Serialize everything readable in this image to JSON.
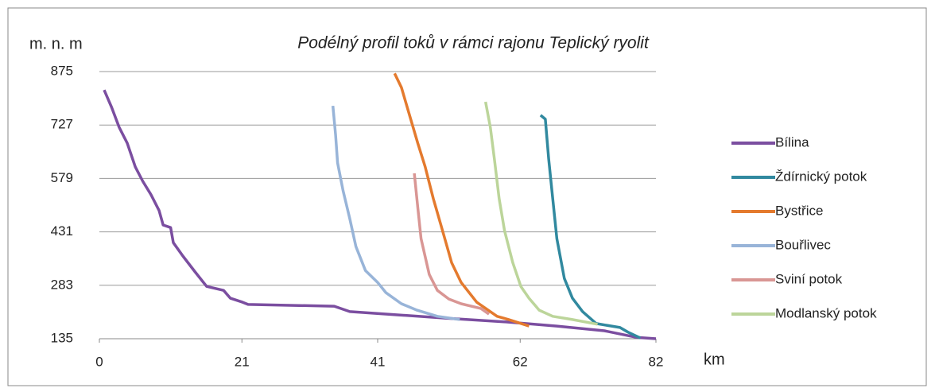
{
  "chart_data": {
    "type": "line",
    "title": "Podélný profil toků v rámci rajonu Teplický ryolit",
    "y_label": "m. n. m",
    "x_label": "km",
    "xlim": [
      0,
      82
    ],
    "xticks": [
      0,
      21,
      41,
      62,
      82
    ],
    "ylim": [
      135,
      875
    ],
    "yticks": [
      135,
      283,
      431,
      579,
      727,
      875
    ],
    "grid": true,
    "legend": "right",
    "series": [
      {
        "name": "Bílina",
        "color": "#7b4ea0",
        "x": [
          0.7,
          1.8,
          2.9,
          4.1,
          5.3,
          6.4,
          7.6,
          8.8,
          9.4,
          10.5,
          10.9,
          12.3,
          14.1,
          15.8,
          18.3,
          19.3,
          21.1,
          21.9,
          34.6,
          36.9,
          43.9,
          51,
          60.3,
          67.4,
          74.4,
          79.1,
          82
        ],
        "values": [
          824,
          776,
          721,
          677,
          611,
          571,
          534,
          490,
          450,
          443,
          401,
          364,
          320,
          280,
          269,
          247,
          236,
          230,
          225,
          210,
          201,
          192,
          181,
          170,
          157,
          139,
          135
        ]
      },
      {
        "name": "Ždírnický potok",
        "color": "#31899f",
        "x": [
          65,
          65.7,
          66.2,
          66.8,
          67.4,
          68.5,
          69.7,
          71.2,
          73.2,
          76.7,
          77.9,
          79.7
        ],
        "values": [
          754,
          743,
          633,
          523,
          412,
          302,
          247,
          210,
          177,
          166,
          153,
          137
        ]
      },
      {
        "name": "Bystřice",
        "color": "#e47a2e",
        "x": [
          43.5,
          44.5,
          45.7,
          46.9,
          48,
          49.2,
          50.4,
          51.9,
          53.3,
          55.6,
          58.6,
          60.3,
          63.3
        ],
        "values": [
          870,
          831,
          754,
          677,
          611,
          523,
          445,
          346,
          291,
          236,
          197,
          188,
          170
        ]
      },
      {
        "name": "Bouřlivec",
        "color": "#98b4d8",
        "x": [
          34.4,
          34.8,
          35.1,
          35.9,
          36.9,
          37.8,
          39.2,
          41,
          42.2,
          44.5,
          46.8,
          49.8,
          53.1
        ],
        "values": [
          780,
          699,
          622,
          545,
          467,
          390,
          324,
          291,
          263,
          232,
          214,
          197,
          188
        ]
      },
      {
        "name": "Sviní potok",
        "color": "#d99694",
        "x": [
          46.4,
          46.9,
          47.4,
          48.6,
          49.8,
          51.5,
          53.3,
          56.2,
          57.4
        ],
        "values": [
          593,
          500,
          412,
          313,
          269,
          245,
          232,
          219,
          203
        ]
      },
      {
        "name": "Modlanský potok",
        "color": "#bcd59a",
        "x": [
          56.9,
          57.6,
          58.2,
          58.9,
          59.7,
          60.9,
          62.1,
          63.3,
          64.8,
          66.8,
          69.7,
          73.4
        ],
        "values": [
          791,
          721,
          633,
          523,
          434,
          346,
          280,
          247,
          214,
          197,
          188,
          175
        ]
      }
    ]
  }
}
